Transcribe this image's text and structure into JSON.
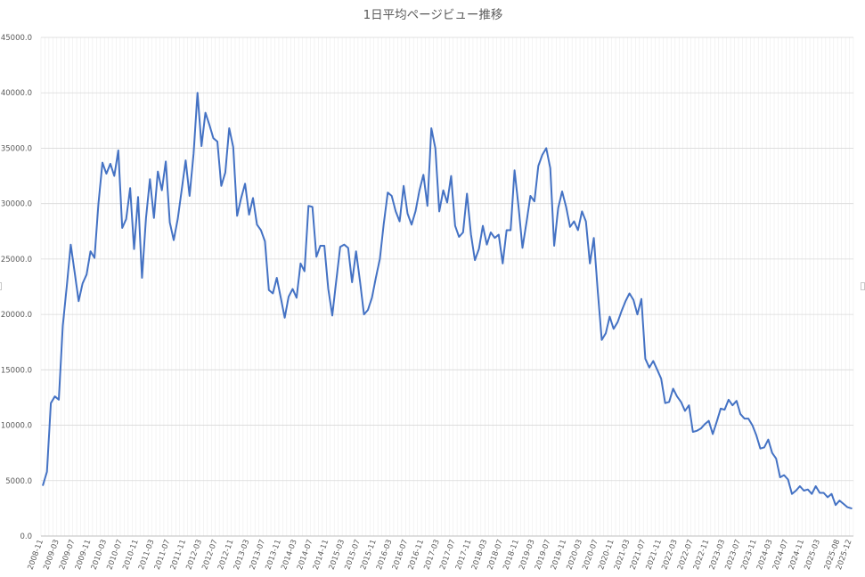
{
  "chart_data": {
    "type": "line",
    "title": "1日平均ページビュー推移",
    "xlabel": "",
    "ylabel": "",
    "ylim": [
      0,
      45000
    ],
    "ytick_values": [
      0,
      5000,
      10000,
      15000,
      20000,
      25000,
      30000,
      35000,
      40000,
      45000
    ],
    "ytick_labels": [
      "0.0",
      "5000.0",
      "10000.0",
      "15000.0",
      "20000.0",
      "25000.0",
      "30000.0",
      "35000.0",
      "40000.0",
      "45000.0"
    ],
    "x_start": "2008-11",
    "xtick_labels": [
      "2008-11",
      "2009-03",
      "2009-07",
      "2009-11",
      "2010-03",
      "2010-07",
      "2010-11",
      "2011-03",
      "2011-07",
      "2011-11",
      "2012-03",
      "2012-07",
      "2012-11",
      "2013-03",
      "2013-07",
      "2013-11",
      "2014-03",
      "2014-07",
      "2014-11",
      "2015-03",
      "2015-07",
      "2015-11",
      "2016-03",
      "2016-07",
      "2016-11",
      "2017-03",
      "2017-07",
      "2017-11",
      "2018-03",
      "2018-07",
      "2018-11",
      "2019-03",
      "2019-07",
      "2019-11",
      "2020-03",
      "2020-07",
      "2020-11",
      "2021-03",
      "2021-07",
      "2021-11",
      "2022-03",
      "2022-07",
      "2022-11",
      "2023-03",
      "2023-07",
      "2023-11",
      "2024-03",
      "2024-07",
      "2024-11",
      "2025-03",
      "2025-08",
      "2025-12"
    ],
    "grid": true,
    "legend": "none",
    "color": "#4472c4",
    "series": [
      {
        "values": [
          4600,
          5800,
          12000,
          12600,
          12300,
          19000,
          22500,
          26300,
          23800,
          21200,
          22800,
          23600,
          25700,
          25100,
          30000,
          33700,
          32700,
          33600,
          32500,
          34800,
          27800,
          28600,
          31400,
          25900,
          30600,
          23300,
          28700,
          32200,
          28700,
          32900,
          31200,
          33800,
          28300,
          26700,
          28600,
          31200,
          33900,
          30700,
          34500,
          40000,
          35200,
          38200,
          37100,
          35900,
          35600,
          31600,
          32800,
          36800,
          35100,
          28900,
          30500,
          31800,
          29000,
          30500,
          28100,
          27600,
          26600,
          22200,
          21900,
          23300,
          21500,
          19700,
          21600,
          22300,
          21500,
          24600,
          23900,
          29800,
          29700,
          25200,
          26200,
          26200,
          22300,
          19900,
          23000,
          26100,
          26300,
          26000,
          22900,
          25700,
          23000,
          20000,
          20400,
          21500,
          23300,
          25000,
          28200,
          31000,
          30700,
          29300,
          28400,
          31600,
          29100,
          28100,
          29300,
          31200,
          32600,
          29800,
          36800,
          35000,
          29300,
          31200,
          30100,
          32500,
          28000,
          27000,
          27400,
          30900,
          27200,
          24900,
          25900,
          28000,
          26300,
          27400,
          26900,
          27200,
          24600,
          27600,
          27600,
          33000,
          29700,
          26000,
          28300,
          30700,
          30200,
          33400,
          34400,
          35000,
          33200,
          26200,
          29600,
          31100,
          29700,
          27900,
          28400,
          27600,
          29300,
          28400,
          24600,
          26900,
          22000,
          17700,
          18300,
          19800,
          18700,
          19300,
          20300,
          21200,
          21900,
          21300,
          20000,
          21400,
          16000,
          15200,
          15800,
          15000,
          14200,
          12000,
          12100,
          13300,
          12600,
          12100,
          11300,
          11800,
          9400,
          9500,
          9700,
          10100,
          10400,
          9200,
          10300,
          11500,
          11400,
          12300,
          11800,
          12200,
          11000,
          10600,
          10600,
          10000,
          9100,
          7900,
          8000,
          8700,
          7500,
          7000,
          5300,
          5500,
          5100,
          3800,
          4100,
          4500,
          4100,
          4200,
          3800,
          4500,
          3900,
          3900,
          3500,
          3800,
          2800,
          3200,
          2900,
          2600,
          2500
        ]
      }
    ]
  }
}
